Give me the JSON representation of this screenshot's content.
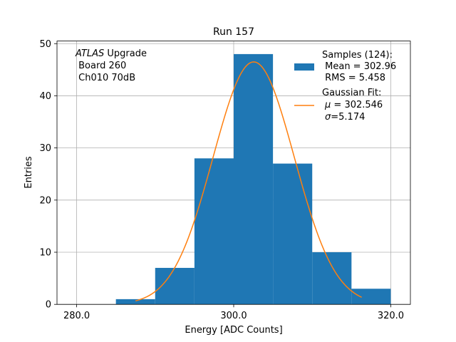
{
  "chart_data": {
    "type": "bar",
    "title": "Run 157",
    "xlabel": "Energy [ADC Counts]",
    "ylabel": "Entries",
    "xlim": [
      277.5,
      322.5
    ],
    "ylim": [
      0,
      50.5
    ],
    "x_ticks": [
      280,
      300,
      320
    ],
    "x_tick_labels": [
      "280.0",
      "300.0",
      "320.0"
    ],
    "y_ticks": [
      0,
      10,
      20,
      30,
      40,
      50
    ],
    "y_tick_labels": [
      "0",
      "10",
      "20",
      "30",
      "40",
      "50"
    ],
    "grid": true,
    "histogram": {
      "name": "Samples (124):",
      "color": "#1f77b4",
      "bin_edges": [
        285,
        290,
        295,
        300,
        305,
        310,
        315,
        320
      ],
      "counts": [
        1,
        7,
        28,
        48,
        27,
        10,
        3
      ]
    },
    "fit": {
      "name": "Gaussian Fit:",
      "color": "#ff7f0e",
      "mu": 302.546,
      "sigma": 5.174,
      "x_range": [
        287.5,
        316.3
      ],
      "peak": 46.5
    },
    "annotation": {
      "italic": "ATLAS",
      "line1_rest": " Upgrade",
      "line2": " Board 260",
      "line3": " Ch010 70dB"
    },
    "legend": {
      "position": "top-right",
      "hist_label_1": "Samples (124):",
      "hist_label_2": " Mean = 302.96",
      "hist_label_3": " RMS = 5.458",
      "fit_label_1": "Gaussian Fit:",
      "fit_mu_symbol": "μ",
      "fit_mu_text": " = 302.546",
      "fit_sigma_symbol": "σ",
      "fit_sigma_text": "=5.174"
    }
  }
}
